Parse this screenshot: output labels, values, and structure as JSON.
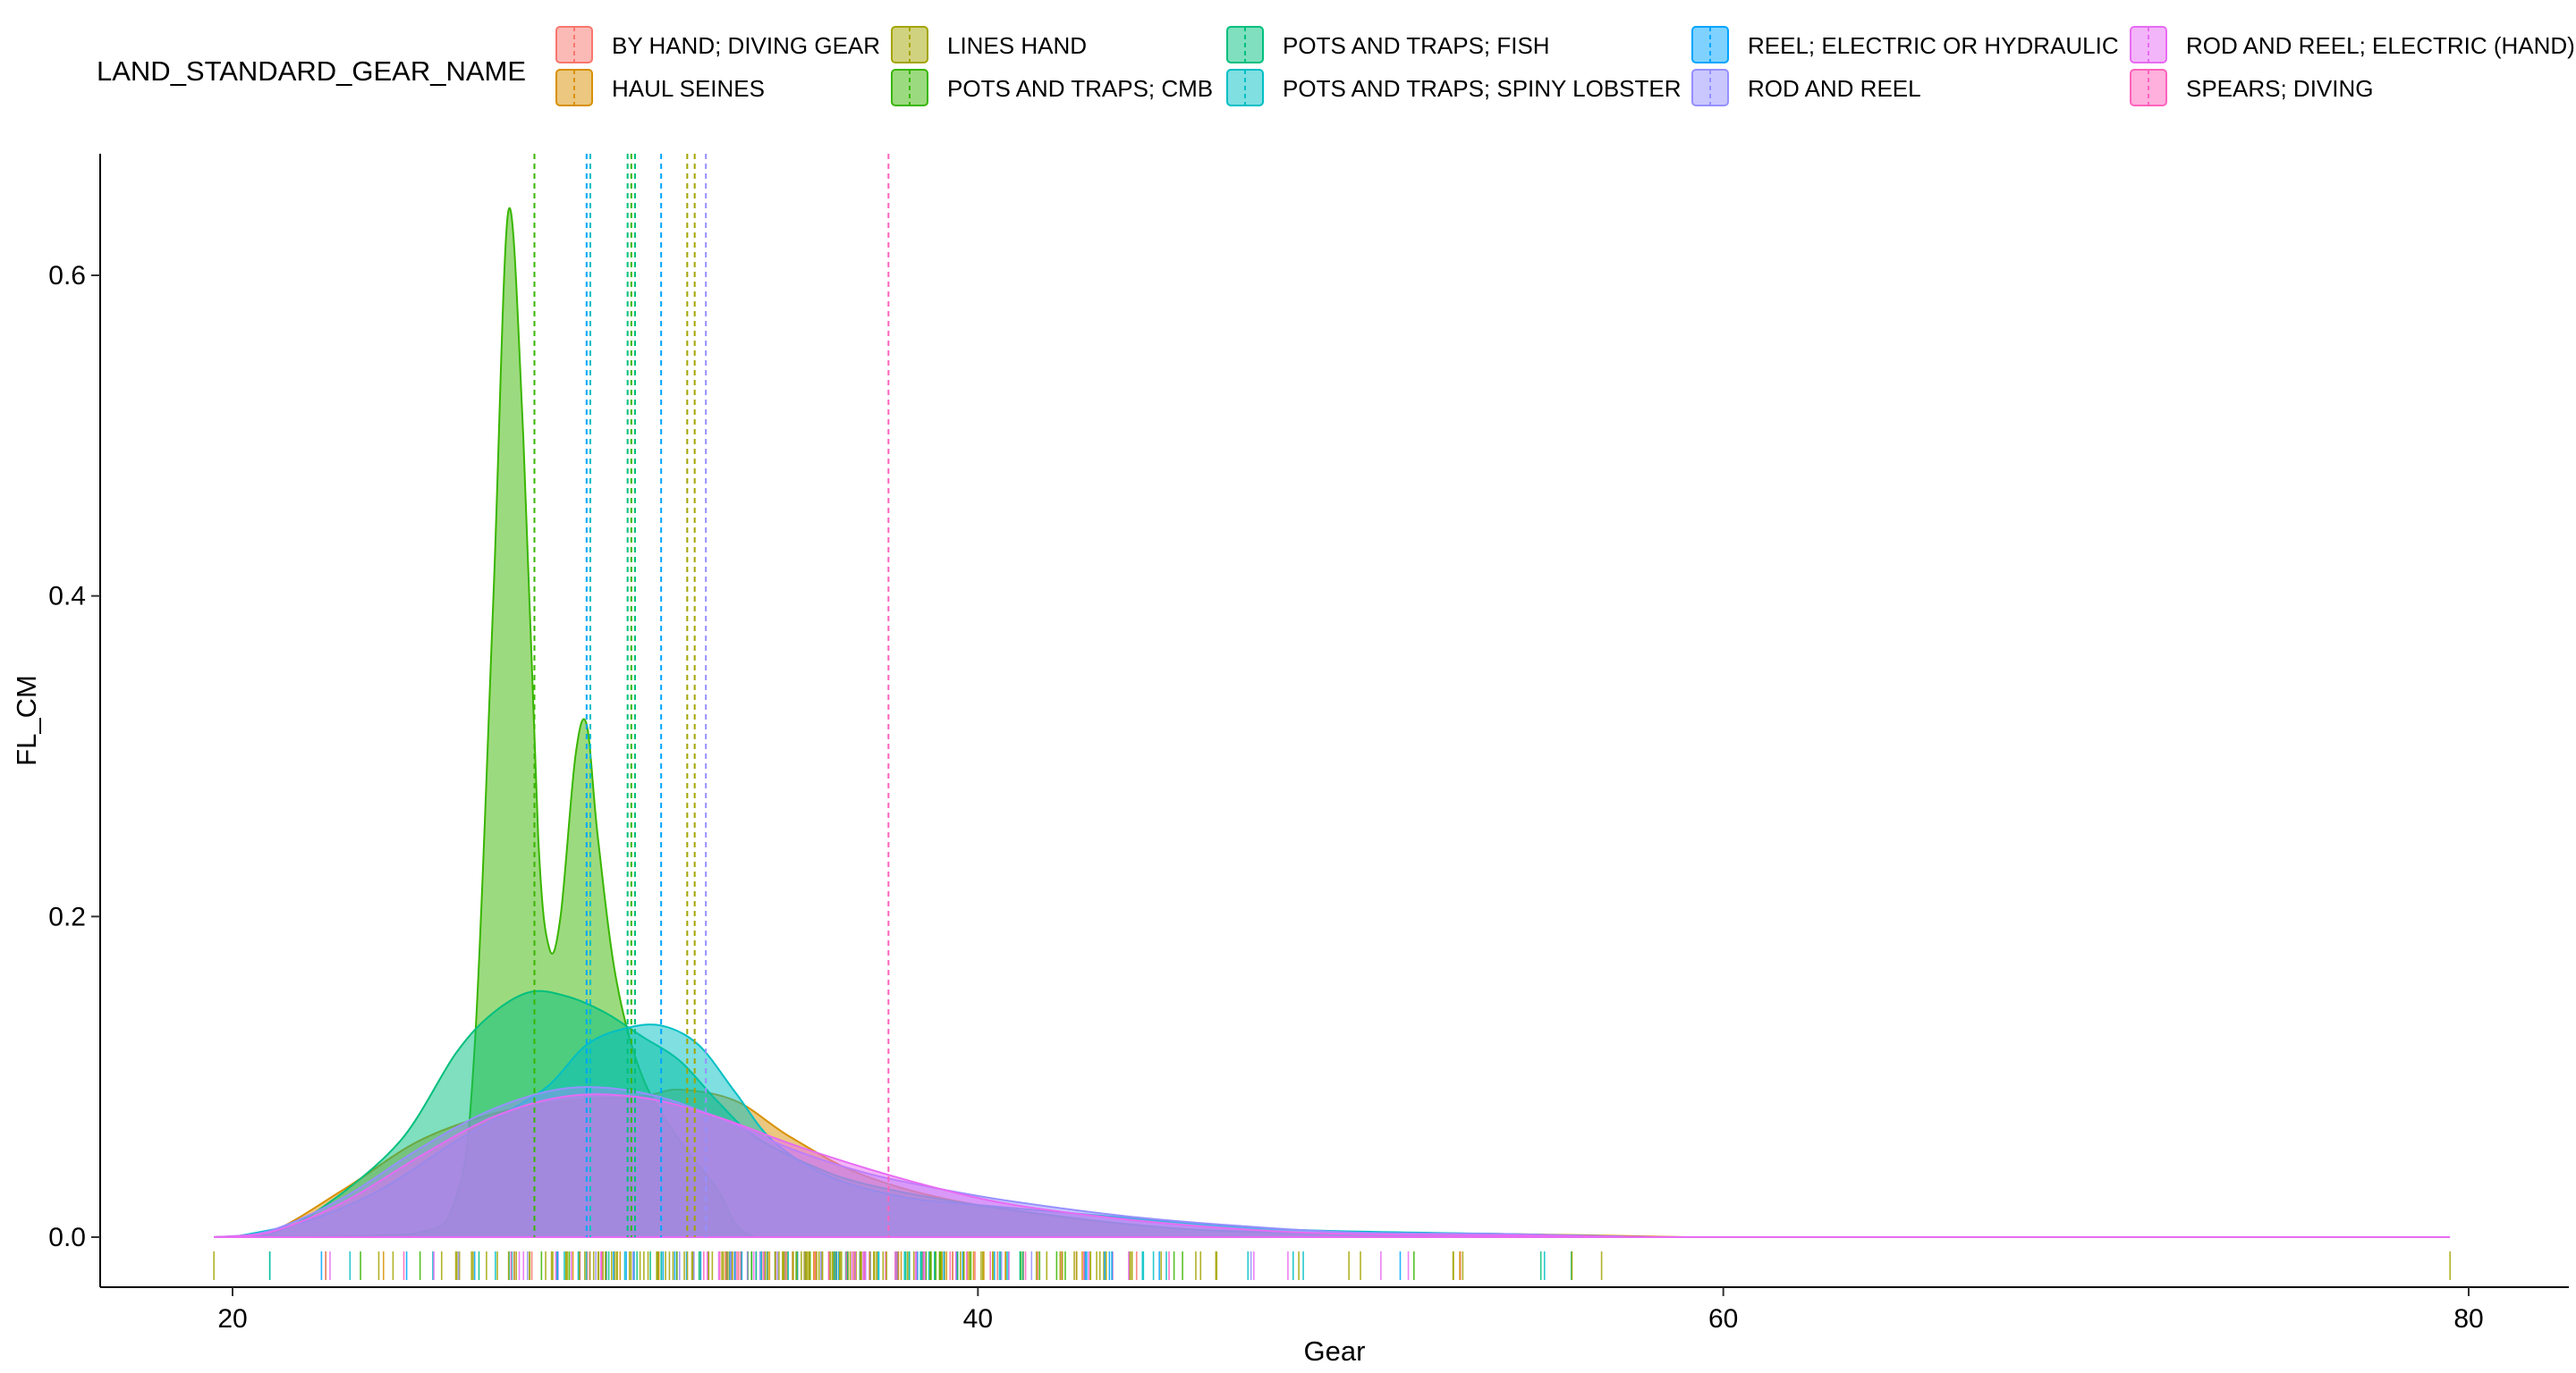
{
  "chart_data": {
    "type": "area",
    "subtype": "density",
    "xlabel": "Gear",
    "ylabel": "FL_CM",
    "xlim": [
      16.5,
      83
    ],
    "ylim": [
      -0.035,
      0.675
    ],
    "x_ticks": [
      20,
      40,
      60,
      80
    ],
    "x_tick_labels": [
      "20",
      "40",
      "60",
      "80"
    ],
    "y_ticks": [
      0.0,
      0.2,
      0.4,
      0.6
    ],
    "y_tick_labels": [
      "0.0",
      "0.2",
      "0.4",
      "0.6"
    ],
    "grid": false,
    "legend": {
      "title": "LAND_STANDARD_GEAR_NAME",
      "position": "top",
      "columns": 5
    },
    "series": [
      {
        "name": "BY HAND; DIVING GEAR",
        "color": "#F8766D",
        "mean": null,
        "density": []
      },
      {
        "name": "HAUL SEINES",
        "color": "#D89000",
        "mean": null,
        "density": [
          [
            19.5,
            0
          ],
          [
            21,
            0.003
          ],
          [
            23,
            0.03
          ],
          [
            25,
            0.06
          ],
          [
            27,
            0.077
          ],
          [
            29,
            0.085
          ],
          [
            31,
            0.088
          ],
          [
            32,
            0.092
          ],
          [
            33.5,
            0.085
          ],
          [
            35,
            0.062
          ],
          [
            37,
            0.038
          ],
          [
            40,
            0.02
          ],
          [
            45,
            0.006
          ],
          [
            50,
            0.002
          ],
          [
            54,
            0.002
          ],
          [
            59,
            0
          ]
        ]
      },
      {
        "name": "LINES HAND",
        "color": "#A3A500",
        "mean": 32.4,
        "density": []
      },
      {
        "name": "POTS AND TRAPS; CMB",
        "color": "#39B600",
        "mean": 28.1,
        "density": [
          [
            20.5,
            0
          ],
          [
            24.8,
            0.002
          ],
          [
            26,
            0.025
          ],
          [
            26.5,
            0.12
          ],
          [
            27,
            0.4
          ],
          [
            27.4,
            0.64
          ],
          [
            27.8,
            0.5
          ],
          [
            28.2,
            0.25
          ],
          [
            28.5,
            0.18
          ],
          [
            28.8,
            0.2
          ],
          [
            29.2,
            0.3
          ],
          [
            29.5,
            0.32
          ],
          [
            29.8,
            0.25
          ],
          [
            30.3,
            0.16
          ],
          [
            31,
            0.1
          ],
          [
            32,
            0.06
          ],
          [
            33,
            0.03
          ],
          [
            33.5,
            0.008
          ],
          [
            34,
            0
          ]
        ]
      },
      {
        "name": "POTS AND TRAPS; FISH",
        "color": "#00BF7D",
        "mean": 30.8,
        "density": [
          [
            19.5,
            0
          ],
          [
            21,
            0.002
          ],
          [
            22.5,
            0.02
          ],
          [
            24.5,
            0.06
          ],
          [
            26,
            0.115
          ],
          [
            27,
            0.14
          ],
          [
            28,
            0.153
          ],
          [
            29,
            0.15
          ],
          [
            30,
            0.14
          ],
          [
            31,
            0.125
          ],
          [
            32,
            0.11
          ],
          [
            33,
            0.085
          ],
          [
            34,
            0.063
          ],
          [
            35.5,
            0.045
          ],
          [
            37,
            0.033
          ],
          [
            40,
            0.02
          ],
          [
            45,
            0.006
          ],
          [
            50,
            0.002
          ],
          [
            55,
            0.001
          ],
          [
            58,
            0
          ]
        ]
      },
      {
        "name": "POTS AND TRAPS; SPINY LOBSTER",
        "color": "#00BFC4",
        "mean": 29.6,
        "density": [
          [
            20,
            0
          ],
          [
            22,
            0.01
          ],
          [
            24,
            0.03
          ],
          [
            26,
            0.06
          ],
          [
            27.5,
            0.08
          ],
          [
            28.5,
            0.095
          ],
          [
            29.5,
            0.12
          ],
          [
            30.5,
            0.13
          ],
          [
            31.5,
            0.132
          ],
          [
            32.5,
            0.12
          ],
          [
            33.5,
            0.09
          ],
          [
            34.5,
            0.06
          ],
          [
            36,
            0.038
          ],
          [
            38,
            0.025
          ],
          [
            40,
            0.02
          ],
          [
            43,
            0.014
          ],
          [
            48,
            0.005
          ],
          [
            54,
            0.002
          ],
          [
            58,
            0
          ]
        ]
      },
      {
        "name": "REEL; ELECTRIC OR HYDRAULIC",
        "color": "#00A5FF",
        "mean": 31.5,
        "density": []
      },
      {
        "name": "ROD AND REEL",
        "color": "#9590FF",
        "mean": 32.7,
        "density": [
          [
            19.5,
            0
          ],
          [
            21,
            0.004
          ],
          [
            23,
            0.025
          ],
          [
            25,
            0.055
          ],
          [
            27,
            0.08
          ],
          [
            29,
            0.093
          ],
          [
            31,
            0.09
          ],
          [
            33,
            0.075
          ],
          [
            35,
            0.055
          ],
          [
            37,
            0.04
          ],
          [
            39,
            0.03
          ],
          [
            41,
            0.022
          ],
          [
            44,
            0.013
          ],
          [
            47,
            0.007
          ],
          [
            50,
            0.003
          ],
          [
            54,
            0.002
          ],
          [
            56,
            0.001
          ],
          [
            58,
            0
          ]
        ]
      },
      {
        "name": "ROD AND REEL; ELECTRIC (HAND)",
        "color": "#E76BF3",
        "mean": null,
        "density": [
          [
            19.5,
            0
          ],
          [
            21,
            0.003
          ],
          [
            23,
            0.022
          ],
          [
            25,
            0.05
          ],
          [
            27,
            0.075
          ],
          [
            29,
            0.088
          ],
          [
            31,
            0.087
          ],
          [
            33,
            0.075
          ],
          [
            35,
            0.058
          ],
          [
            37,
            0.043
          ],
          [
            39,
            0.03
          ],
          [
            41,
            0.02
          ],
          [
            44,
            0.011
          ],
          [
            47,
            0.005
          ],
          [
            50,
            0.002
          ],
          [
            55,
            0.001
          ],
          [
            60,
            0
          ],
          [
            79.5,
            0
          ]
        ]
      },
      {
        "name": "SPEARS; DIVING",
        "color": "#FF62BC",
        "mean": 37.6,
        "density": []
      }
    ],
    "extra_mean_lines": [
      {
        "x": 29.5,
        "color": "#00A5FF"
      },
      {
        "x": 30.6,
        "color": "#00BF7D"
      },
      {
        "x": 30.7,
        "color": "#39B600"
      },
      {
        "x": 32.2,
        "color": "#A3A500"
      }
    ],
    "rug": {
      "range": [
        19.5,
        79.5
      ],
      "dense_range": [
        21,
        59
      ]
    }
  }
}
